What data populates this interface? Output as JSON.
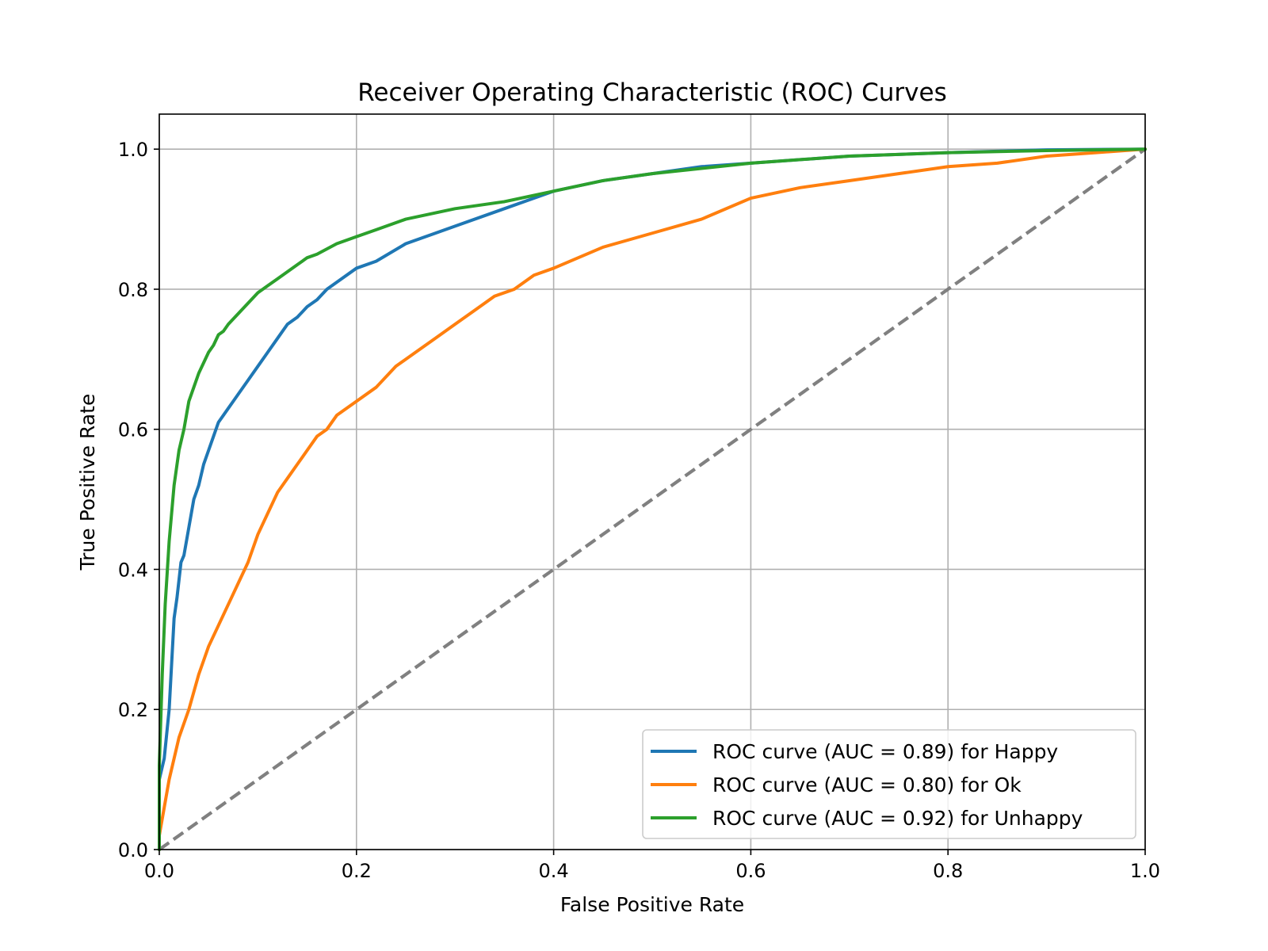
{
  "chart_data": {
    "type": "line",
    "title": "Receiver Operating Characteristic (ROC) Curves",
    "xlabel": "False Positive Rate",
    "ylabel": "True Positive Rate",
    "xlim": [
      0.0,
      1.0
    ],
    "ylim": [
      0.0,
      1.05
    ],
    "xticks": [
      0.0,
      0.2,
      0.4,
      0.6,
      0.8,
      1.0
    ],
    "yticks": [
      0.0,
      0.2,
      0.4,
      0.6,
      0.8,
      1.0
    ],
    "xtick_labels": [
      "0.0",
      "0.2",
      "0.4",
      "0.6",
      "0.8",
      "1.0"
    ],
    "ytick_labels": [
      "0.0",
      "0.2",
      "0.4",
      "0.6",
      "0.8",
      "1.0"
    ],
    "grid": true,
    "legend_position": "lower-right",
    "series": [
      {
        "name": "ROC curve (AUC = 0.89) for Happy",
        "color": "#1f77b4",
        "x": [
          0.0,
          0.0,
          0.005,
          0.01,
          0.015,
          0.018,
          0.022,
          0.025,
          0.03,
          0.035,
          0.04,
          0.045,
          0.05,
          0.055,
          0.06,
          0.065,
          0.07,
          0.075,
          0.08,
          0.09,
          0.1,
          0.11,
          0.12,
          0.13,
          0.14,
          0.15,
          0.16,
          0.17,
          0.18,
          0.2,
          0.22,
          0.25,
          0.28,
          0.3,
          0.35,
          0.4,
          0.45,
          0.5,
          0.55,
          0.6,
          0.7,
          0.8,
          0.9,
          1.0
        ],
        "y": [
          0.0,
          0.1,
          0.13,
          0.2,
          0.33,
          0.36,
          0.41,
          0.42,
          0.46,
          0.5,
          0.52,
          0.55,
          0.57,
          0.59,
          0.61,
          0.62,
          0.63,
          0.64,
          0.65,
          0.67,
          0.69,
          0.71,
          0.73,
          0.75,
          0.76,
          0.775,
          0.785,
          0.8,
          0.81,
          0.83,
          0.84,
          0.865,
          0.88,
          0.89,
          0.915,
          0.94,
          0.955,
          0.965,
          0.975,
          0.98,
          0.99,
          0.995,
          0.999,
          1.0
        ]
      },
      {
        "name": "ROC curve (AUC = 0.80) for Ok",
        "color": "#ff7f0e",
        "x": [
          0.0,
          0.0,
          0.005,
          0.01,
          0.02,
          0.03,
          0.04,
          0.05,
          0.06,
          0.07,
          0.08,
          0.09,
          0.1,
          0.11,
          0.12,
          0.13,
          0.14,
          0.15,
          0.16,
          0.17,
          0.18,
          0.2,
          0.22,
          0.24,
          0.26,
          0.28,
          0.3,
          0.32,
          0.34,
          0.36,
          0.38,
          0.4,
          0.45,
          0.5,
          0.55,
          0.6,
          0.65,
          0.7,
          0.75,
          0.8,
          0.85,
          0.9,
          0.95,
          1.0
        ],
        "y": [
          0.0,
          0.02,
          0.06,
          0.1,
          0.16,
          0.2,
          0.25,
          0.29,
          0.32,
          0.35,
          0.38,
          0.41,
          0.45,
          0.48,
          0.51,
          0.53,
          0.55,
          0.57,
          0.59,
          0.6,
          0.62,
          0.64,
          0.66,
          0.69,
          0.71,
          0.73,
          0.75,
          0.77,
          0.79,
          0.8,
          0.82,
          0.83,
          0.86,
          0.88,
          0.9,
          0.93,
          0.945,
          0.955,
          0.965,
          0.975,
          0.98,
          0.99,
          0.995,
          1.0
        ]
      },
      {
        "name": "ROC curve (AUC = 0.92) for Unhappy",
        "color": "#2ca02c",
        "x": [
          0.0,
          0.0,
          0.003,
          0.006,
          0.01,
          0.015,
          0.02,
          0.025,
          0.03,
          0.035,
          0.04,
          0.045,
          0.05,
          0.055,
          0.06,
          0.065,
          0.07,
          0.08,
          0.09,
          0.1,
          0.11,
          0.12,
          0.13,
          0.14,
          0.15,
          0.16,
          0.18,
          0.2,
          0.22,
          0.25,
          0.3,
          0.35,
          0.4,
          0.45,
          0.5,
          0.6,
          0.7,
          0.8,
          0.9,
          1.0
        ],
        "y": [
          0.0,
          0.12,
          0.25,
          0.35,
          0.44,
          0.52,
          0.57,
          0.6,
          0.64,
          0.66,
          0.68,
          0.695,
          0.71,
          0.72,
          0.735,
          0.74,
          0.75,
          0.765,
          0.78,
          0.795,
          0.805,
          0.815,
          0.825,
          0.835,
          0.845,
          0.85,
          0.865,
          0.875,
          0.885,
          0.9,
          0.915,
          0.925,
          0.94,
          0.955,
          0.965,
          0.98,
          0.99,
          0.995,
          0.998,
          1.0
        ]
      }
    ],
    "reference_line": {
      "x": [
        0.0,
        1.0
      ],
      "y": [
        0.0,
        1.0
      ],
      "color": "#808080",
      "style": "dashed"
    }
  }
}
